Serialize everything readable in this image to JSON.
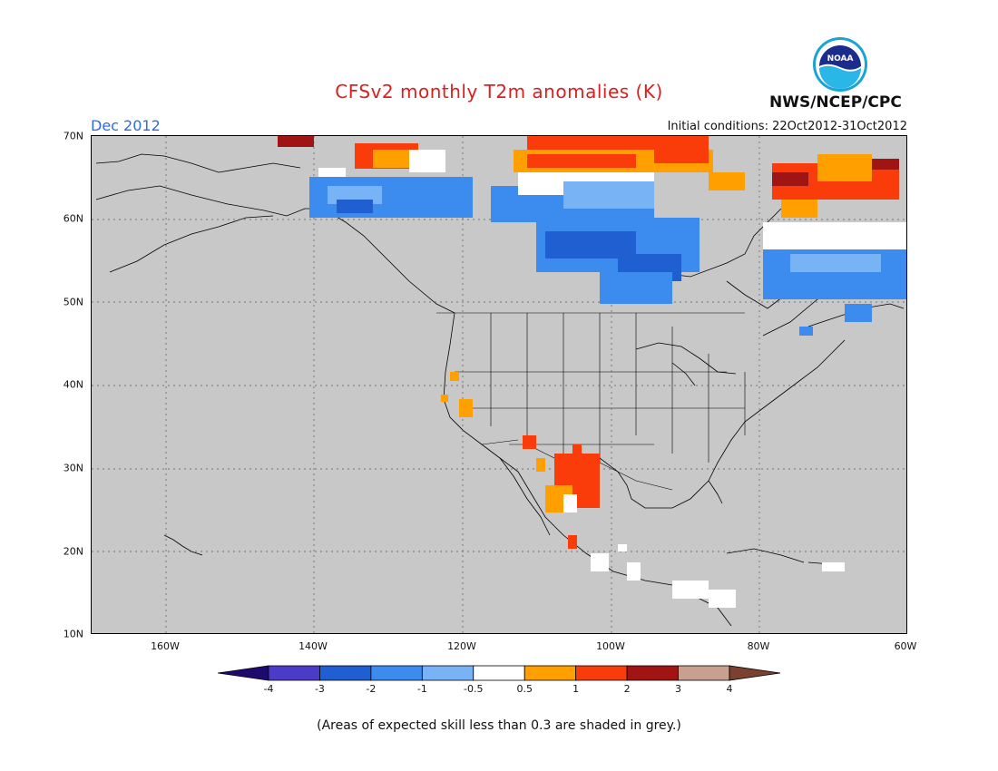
{
  "title": "CFSv2 monthly T2m anomalies (K)",
  "month": "Dec 2012",
  "initial_conditions": "Initial conditions: 22Oct2012-31Oct2012",
  "agency": "NWS/NCEP/CPC",
  "logo_text": "NOAA",
  "lat_labels": [
    "70N",
    "60N",
    "50N",
    "40N",
    "30N",
    "20N",
    "10N"
  ],
  "lon_labels": [
    "160W",
    "140W",
    "120W",
    "100W",
    "80W",
    "60W"
  ],
  "colorbar": {
    "ticks": [
      "-4",
      "-3",
      "-2",
      "-1",
      "-0.5",
      "0.5",
      "1",
      "2",
      "3",
      "4"
    ],
    "colors": [
      "#1e0a6e",
      "#4b3cc8",
      "#1f5fd2",
      "#3c8cf0",
      "#78b4f5",
      "#ffffff",
      "#ffa000",
      "#fa3c0a",
      "#a01414",
      "#c8a090",
      "#7a4030"
    ]
  },
  "footnote": "(Areas of expected skill less than 0.3 are shaded in grey.)"
}
